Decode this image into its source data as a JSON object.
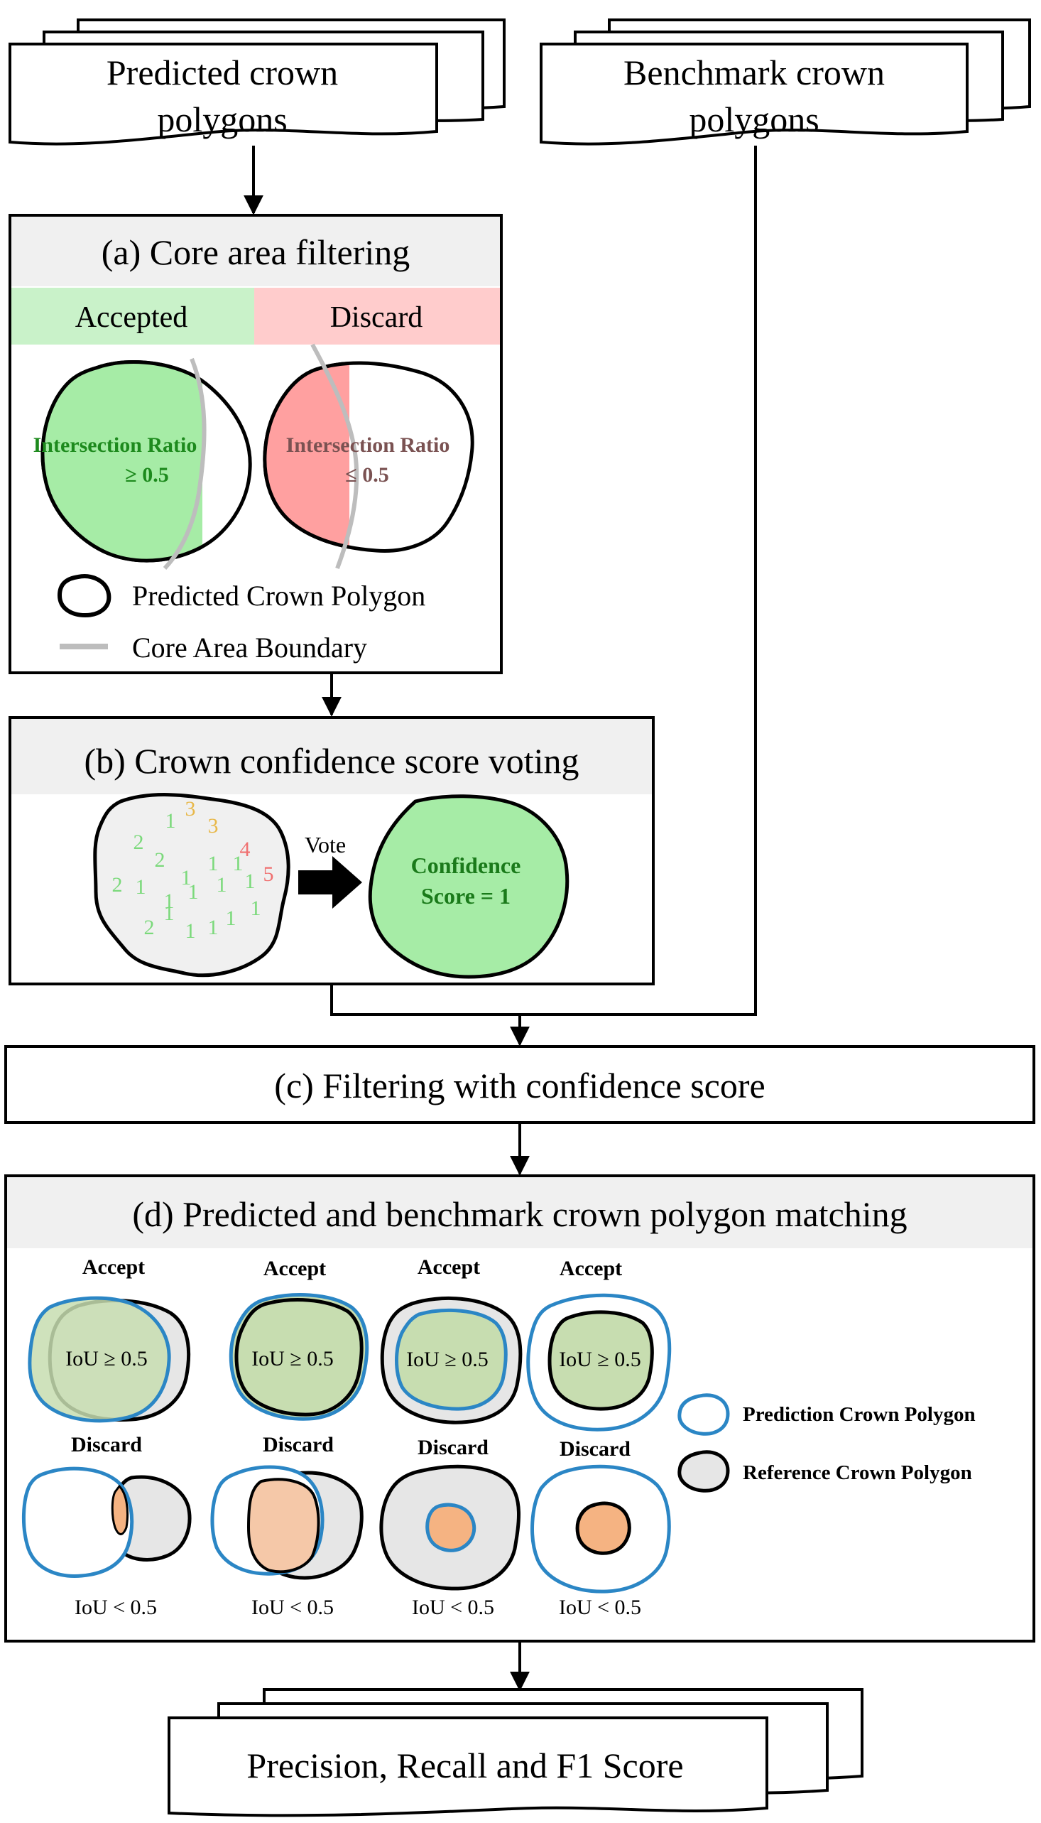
{
  "inputs": {
    "predicted": [
      "Predicted crown",
      "polygons"
    ],
    "benchmark": [
      "Benchmark crown",
      "polygons"
    ]
  },
  "step_a": {
    "title": "(a) Core area filtering",
    "accepted_header": "Accepted",
    "discard_header": "Discard",
    "accepted_ratio": [
      "Intersection Ratio",
      "≥ 0.5"
    ],
    "discard_ratio": [
      "Intersection Ratio",
      "≤ 0.5"
    ],
    "legend_polygon": "Predicted Crown Polygon",
    "legend_boundary": "Core Area Boundary",
    "colors": {
      "accepted_bg": "#c9f2c9",
      "discard_bg": "#ffcccc",
      "accepted_fill": "#a6eca6",
      "discard_fill": "#ffa0a0",
      "boundary": "#bdbdbd"
    }
  },
  "step_b": {
    "title": "(b) Crown confidence score voting",
    "vote_label": "Vote",
    "votes": [
      "2",
      "1",
      "3",
      "3",
      "4",
      "2",
      "1",
      "1",
      "1",
      "1",
      "5",
      "2",
      "1",
      "1",
      "1",
      "1",
      "2",
      "1",
      "1",
      "1",
      "1",
      "1"
    ],
    "confidence": [
      "Confidence",
      "Score = 1"
    ]
  },
  "step_c": {
    "title": "(c) Filtering with confidence score"
  },
  "step_d": {
    "title": "(d) Predicted and benchmark crown polygon matching",
    "accept_label": "Accept",
    "discard_label": "Discard",
    "iou_accept": "IoU ≥ 0.5",
    "iou_discard": "IoU < 0.5",
    "legend_prediction": "Prediction Crown Polygon",
    "legend_reference": "Reference Crown Polygon",
    "colors": {
      "prediction": "#2b86c5",
      "reference_fill": "#e6e6e6",
      "match_fill": "#c7ddb0",
      "overlap_fill": "#f5b382"
    }
  },
  "output": {
    "label": "Precision, Recall and F1 Score"
  }
}
